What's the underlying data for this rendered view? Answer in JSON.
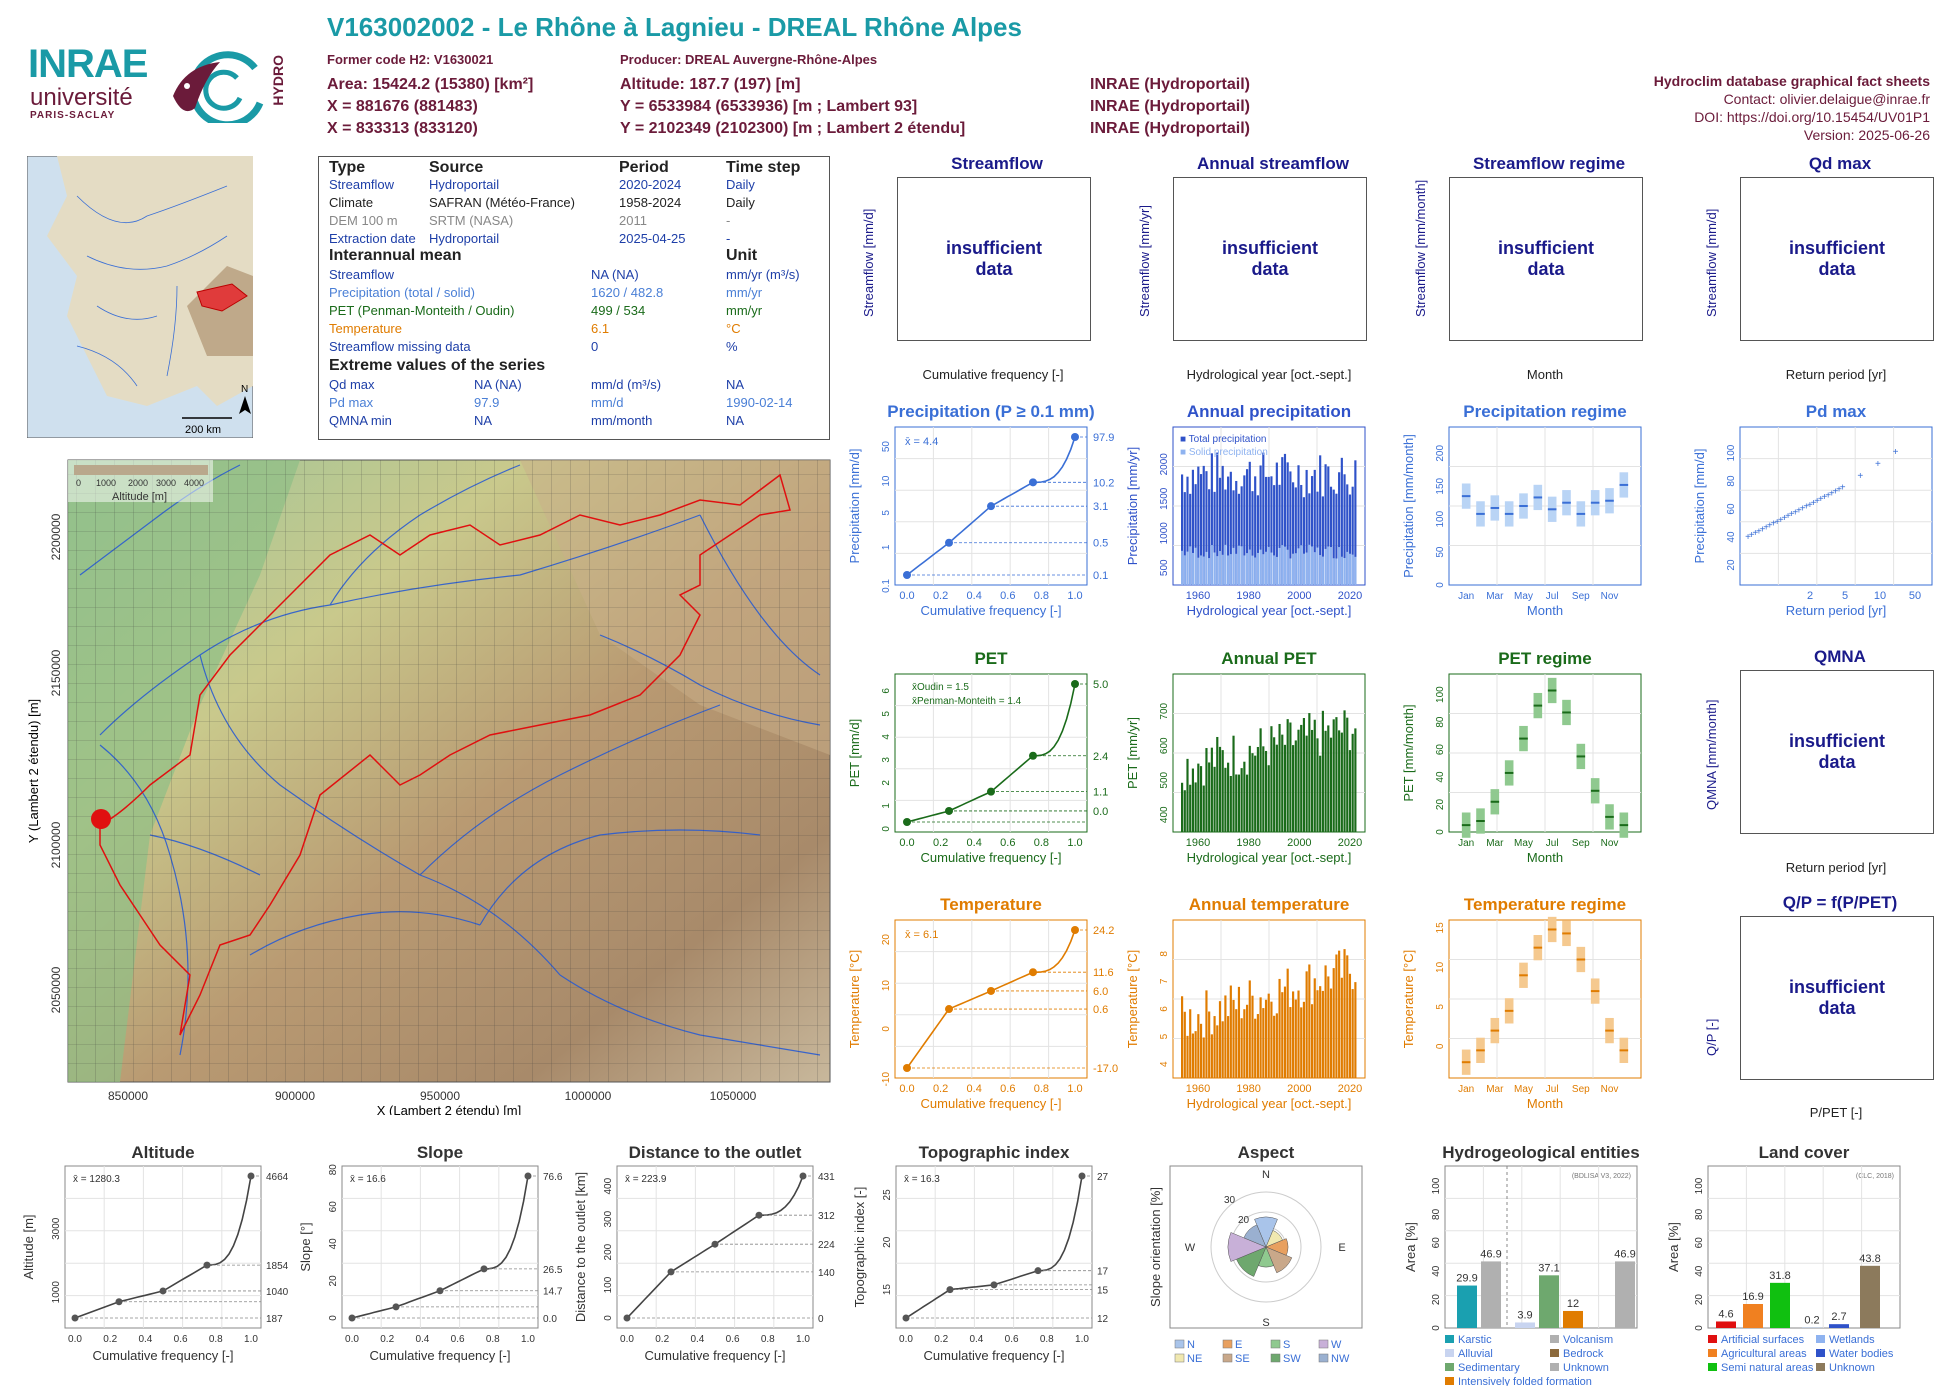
{
  "header": {
    "title": "V163002002 - Le Rhône à Lagnieu - DREAL Rhône Alpes",
    "former_code": "Former code H2: V1630021",
    "producer": "Producer: DREAL Auvergne-Rhône-Alpes",
    "area": "Area: 15424.2 (15380) [km²]",
    "x": "X = 881676 (881483)",
    "x2": "X = 833313 (833120)",
    "altitude": "Altitude: 187.7 (197) [m]",
    "y": "Y = 6533984 (6533936) [m ; Lambert 93]",
    "y2": "Y = 2102349 (2102300) [m ; Lambert 2 étendu]",
    "src1": "INRAE (Hydroportail)",
    "src2": "INRAE (Hydroportail)",
    "src3": "INRAE (Hydroportail)",
    "fact_title": "Hydroclim database graphical fact sheets",
    "contact": "Contact: olivier.delaigue@inrae.fr",
    "doi": "DOI: https://doi.org/10.15454/UV01P1",
    "version": "Version: 2025-06-26"
  },
  "logos": {
    "inrae": "INRAE",
    "univ": "université",
    "ps": "PARIS-SACLAY",
    "hydro": "HYDRO"
  },
  "info": {
    "h_type": "Type",
    "h_source": "Source",
    "h_period": "Period",
    "h_step": "Time step",
    "rows": [
      {
        "a": "Streamflow",
        "b": "Hydroportail",
        "c": "2020-2024",
        "d": "Daily",
        "cls": "blue"
      },
      {
        "a": "Climate",
        "b": "SAFRAN (Météo-France)",
        "c": "1958-2024",
        "d": "Daily",
        "cls": ""
      },
      {
        "a": "DEM 100 m",
        "b": "SRTM (NASA)",
        "c": "2011",
        "d": "-",
        "cls": "grey"
      },
      {
        "a": "Extraction date",
        "b": "Hydroportail",
        "c": "2025-04-25",
        "d": "-",
        "cls": "blue"
      }
    ],
    "interannual": "Interannual mean",
    "unit": "Unit",
    "mean_rows": [
      {
        "a": "Streamflow",
        "b": "NA (NA)",
        "c": "mm/yr (m³/s)",
        "cls": "blue"
      },
      {
        "a": "Precipitation (total / solid)",
        "b": "1620 / 482.8",
        "c": "mm/yr",
        "cls": "lblue"
      },
      {
        "a": "PET (Penman-Monteith / Oudin)",
        "b": "499 / 534",
        "c": "mm/yr",
        "cls": "green"
      },
      {
        "a": "Temperature",
        "b": "6.1",
        "c": "°C",
        "cls": "orange"
      },
      {
        "a": "Streamflow missing data",
        "b": "0",
        "c": "%",
        "cls": "blue"
      }
    ],
    "extreme": "Extreme values of the series",
    "ext_rows": [
      {
        "a": "Qd max",
        "b": "NA (NA)",
        "c": "mm/d (m³/s)",
        "d": "NA",
        "cls": "blue"
      },
      {
        "a": "Pd max",
        "b": "97.9",
        "c": "mm/d",
        "d": "1990-02-14",
        "cls": "lblue"
      },
      {
        "a": "QMNA min",
        "b": "NA",
        "c": "mm/month",
        "d": "NA",
        "cls": "blue"
      }
    ]
  },
  "locmap": {
    "scale": "200 km",
    "north": "N"
  },
  "bigmap": {
    "legend_title": "Altitude [m]",
    "legend_ticks": [
      "0",
      "1000",
      "2000",
      "3000",
      "4000"
    ],
    "xlabel": "X (Lambert 2 étendu) [m]",
    "ylabel": "Y (Lambert 2 étendu) [m]",
    "xticks": [
      "850000",
      "900000",
      "950000",
      "1000000",
      "1050000"
    ],
    "yticks": [
      "2200000",
      "2150000",
      "2100000",
      "2050000"
    ]
  },
  "panels": {
    "insufficient": "insufficient data",
    "streamflow": {
      "title": "Streamflow",
      "xlabel": "Cumulative frequency [-]",
      "ylabel": "Streamflow [mm/d]"
    },
    "annual_streamflow": {
      "title": "Annual streamflow",
      "xlabel": "Hydrological year [oct.-sept.]",
      "ylabel": "Streamflow [mm/yr]"
    },
    "streamflow_regime": {
      "title": "Streamflow regime",
      "xlabel": "Month",
      "ylabel": "Streamflow [mm/month]"
    },
    "qd_max": {
      "title": "Qd max",
      "xlabel": "Return period [yr]",
      "ylabel": "Streamflow [mm/d]"
    },
    "qmna": {
      "title": "QMNA",
      "xlabel": "Return period [yr]",
      "ylabel": "QMNA [mm/month]"
    },
    "qp": {
      "title": "Q/P = f(P/PET)",
      "xlabel": "P/PET [-]",
      "ylabel": "Q/P [-]"
    }
  },
  "chart_data": [
    {
      "id": "precip_cdf",
      "type": "line",
      "title": "Precipitation (P ≥ 0.1 mm)",
      "xlabel": "Cumulative frequency [-]",
      "ylabel": "Precipitation [mm/d]",
      "mean_label": "x̄ = 4.4",
      "x": [
        0,
        0.25,
        0.5,
        0.75,
        1
      ],
      "y": [
        0.1,
        0.5,
        3.1,
        10.2,
        97.9
      ],
      "right_labels": [
        "97.9",
        "10.2",
        "3.1",
        "0.5",
        "0.1"
      ],
      "yticks": [
        "0.1",
        "1",
        "5",
        "10",
        "50"
      ],
      "xticks": [
        "0.0",
        "0.2",
        "0.4",
        "0.6",
        "0.8",
        "1.0"
      ],
      "color": "#3a6fd6"
    },
    {
      "id": "annual_precip",
      "type": "bar",
      "title": "Annual precipitation",
      "xlabel": "Hydrological year [oct.-sept.]",
      "ylabel": "Precipitation [mm/yr]",
      "legend": [
        "Total precipitation",
        "Solid precipitation"
      ],
      "xticks": [
        "1960",
        "1980",
        "2000",
        "2020"
      ],
      "yticks": [
        "500",
        "1000",
        "1500",
        "2000"
      ],
      "ylim": [
        0,
        2200
      ]
    },
    {
      "id": "precip_regime",
      "type": "bar",
      "title": "Precipitation regime",
      "xlabel": "Month",
      "ylabel": "Precipitation [mm/month]",
      "months": [
        "Jan",
        "Mar",
        "May",
        "Jul",
        "Sep",
        "Nov"
      ],
      "values": [
        135,
        108,
        117,
        108,
        120,
        133,
        115,
        125,
        108,
        125,
        128,
        152
      ],
      "yticks": [
        "0",
        "50",
        "100",
        "150",
        "200"
      ],
      "ylim": [
        0,
        240
      ]
    },
    {
      "id": "pd_max",
      "type": "scatter",
      "title": "Pd max",
      "xlabel": "Return period [yr]",
      "ylabel": "Precipitation [mm/d]",
      "xticks": [
        "2",
        "5",
        "10",
        "50"
      ],
      "yticks": [
        "20",
        "40",
        "60",
        "80",
        "100"
      ]
    },
    {
      "id": "pet_cdf",
      "type": "line",
      "title": "PET",
      "xlabel": "Cumulative frequency [-]",
      "ylabel": "PET [mm/d]",
      "legend": [
        "x̄Oudin = 1.5",
        "x̄Penman-Monteith = 1.4"
      ],
      "x": [
        0,
        0.25,
        0.5,
        0.75,
        1
      ],
      "y": [
        0,
        0.4,
        1.1,
        2.4,
        5.0
      ],
      "right_labels": [
        "5.0",
        "2.4",
        "1.1",
        "0.0"
      ],
      "yticks": [
        "0",
        "1",
        "2",
        "3",
        "4",
        "5",
        "6"
      ],
      "xticks": [
        "0.0",
        "0.2",
        "0.4",
        "0.6",
        "0.8",
        "1.0"
      ],
      "color": "#1a6b1a"
    },
    {
      "id": "annual_pet",
      "type": "bar",
      "title": "Annual PET",
      "xlabel": "Hydrological year [oct.-sept.]",
      "ylabel": "PET [mm/yr]",
      "xticks": [
        "1960",
        "1980",
        "2000",
        "2020"
      ],
      "yticks": [
        "400",
        "500",
        "600",
        "700"
      ],
      "ylim": [
        360,
        720
      ]
    },
    {
      "id": "pet_regime",
      "type": "bar",
      "title": "PET regime",
      "xlabel": "Month",
      "ylabel": "PET [mm/month]",
      "months": [
        "Jan",
        "Mar",
        "May",
        "Jul",
        "Sep",
        "Nov"
      ],
      "values": [
        5,
        8,
        22,
        43,
        68,
        92,
        103,
        87,
        55,
        30,
        11,
        5
      ],
      "yticks": [
        "0",
        "20",
        "40",
        "60",
        "80",
        "100"
      ],
      "ylim": [
        0,
        115
      ]
    },
    {
      "id": "temp_cdf",
      "type": "line",
      "title": "Temperature",
      "xlabel": "Cumulative frequency [-]",
      "ylabel": "Temperature [°C]",
      "mean_label": "x̄ = 6.1",
      "x": [
        0,
        0.25,
        0.5,
        0.75,
        1
      ],
      "y": [
        -17,
        0.6,
        6.0,
        11.6,
        24.2
      ],
      "right_labels": [
        "24.2",
        "11.6",
        "6.0",
        "0.6",
        "-17.0"
      ],
      "yticks": [
        "-10",
        "0",
        "10",
        "20"
      ],
      "xticks": [
        "0.0",
        "0.2",
        "0.4",
        "0.6",
        "0.8",
        "1.0"
      ],
      "color": "#e07c00"
    },
    {
      "id": "annual_temp",
      "type": "bar",
      "title": "Annual temperature",
      "xlabel": "Hydrological year [oct.-sept.]",
      "ylabel": "Temperature [°C]",
      "xticks": [
        "1960",
        "1980",
        "2000",
        "2020"
      ],
      "yticks": [
        "4",
        "5",
        "6",
        "7",
        "8"
      ],
      "ylim": [
        4,
        8.5
      ]
    },
    {
      "id": "temp_regime",
      "type": "bar",
      "title": "Temperature regime",
      "xlabel": "Month",
      "ylabel": "Temperature [°C]",
      "months": [
        "Jan",
        "Mar",
        "May",
        "Jul",
        "Sep",
        "Nov"
      ],
      "values": [
        -2,
        -0.5,
        2,
        4.5,
        9,
        12.5,
        14.8,
        14.3,
        11,
        7,
        2,
        -0.5
      ],
      "yticks": [
        "0",
        "5",
        "10",
        "15"
      ],
      "ylim": [
        -4,
        16
      ]
    },
    {
      "id": "altitude",
      "type": "line",
      "title": "Altitude",
      "xlabel": "Cumulative frequency [-]",
      "ylabel": "Altitude [m]",
      "mean_label": "x̄ = 1280.3",
      "x": [
        0,
        0.25,
        0.5,
        0.75,
        1
      ],
      "y": [
        187,
        700,
        1040,
        1854,
        4664
      ],
      "right_labels": [
        "4664",
        "1854",
        "1040",
        "187"
      ],
      "yticks": [
        "1000",
        "3000"
      ],
      "xticks": [
        "0.0",
        "0.2",
        "0.4",
        "0.6",
        "0.8",
        "1.0"
      ]
    },
    {
      "id": "slope",
      "type": "line",
      "title": "Slope",
      "xlabel": "Cumulative frequency [-]",
      "ylabel": "Slope [°]",
      "mean_label": "x̄ = 16.6",
      "x": [
        0,
        0.25,
        0.5,
        0.75,
        1
      ],
      "y": [
        0,
        6,
        14.7,
        26.5,
        76.6
      ],
      "right_labels": [
        "76.6",
        "26.5",
        "14.7",
        "0.0"
      ],
      "yticks": [
        "0",
        "20",
        "40",
        "60",
        "80"
      ],
      "xticks": [
        "0.0",
        "0.2",
        "0.4",
        "0.6",
        "0.8",
        "1.0"
      ]
    },
    {
      "id": "distance",
      "type": "line",
      "title": "Distance to the outlet",
      "xlabel": "Cumulative frequency [-]",
      "ylabel": "Distance to the outlet [km]",
      "mean_label": "x̄ = 223.9",
      "x": [
        0,
        0.25,
        0.5,
        0.75,
        1
      ],
      "y": [
        0,
        140,
        224,
        312,
        431
      ],
      "right_labels": [
        "431",
        "312",
        "224",
        "140",
        "0"
      ],
      "yticks": [
        "0",
        "100",
        "200",
        "300",
        "400"
      ],
      "xticks": [
        "0.0",
        "0.2",
        "0.4",
        "0.6",
        "0.8",
        "1.0"
      ]
    },
    {
      "id": "topo",
      "type": "line",
      "title": "Topographic index",
      "xlabel": "Cumulative frequency [-]",
      "ylabel": "Topographic index [-]",
      "mean_label": "x̄ = 16.3",
      "x": [
        0,
        0.25,
        0.5,
        0.75,
        1
      ],
      "y": [
        12,
        15,
        15.5,
        17,
        27
      ],
      "right_labels": [
        "27",
        "17",
        "15",
        "12"
      ],
      "yticks": [
        "15",
        "20",
        "25"
      ],
      "xticks": [
        "0.0",
        "0.2",
        "0.4",
        "0.6",
        "0.8",
        "1.0"
      ]
    },
    {
      "id": "aspect",
      "type": "pie",
      "title": "Aspect",
      "ylabel": "Slope orientation [%]",
      "labels": [
        "N",
        "NE",
        "E",
        "SE",
        "S",
        "SW",
        "W",
        "NW"
      ],
      "rings": [
        "20",
        "30"
      ],
      "dirs": [
        "N",
        "E",
        "S",
        "W"
      ]
    },
    {
      "id": "hydrogeo",
      "type": "bar",
      "title": "Hydrogeological entities",
      "ylabel": "Area [%]",
      "note": "(BDLISA V3, 2022)",
      "categories": [
        "Karstic",
        "Alluvial",
        "Sedimentary",
        "Intensively folded formation",
        "Volcanism",
        "Bedrock",
        "Unknown"
      ],
      "values": [
        29.9,
        46.9,
        3.9,
        37.1,
        12,
        46.9
      ],
      "labels": [
        "29.9",
        "46.9",
        "3.9",
        "37.1",
        "12",
        "46.9"
      ],
      "yticks": [
        "0",
        "20",
        "40",
        "60",
        "80",
        "100"
      ]
    },
    {
      "id": "landcover",
      "type": "bar",
      "title": "Land cover",
      "ylabel": "Area [%]",
      "note": "(CLC, 2018)",
      "categories": [
        "Artificial surfaces",
        "Agricultural areas",
        "Semi natural areas",
        "Wetlands",
        "Water bodies",
        "Unknown"
      ],
      "values": [
        4.6,
        16.9,
        31.8,
        0.2,
        2.7,
        43.8
      ],
      "labels": [
        "4.6",
        "16.9",
        "31.8",
        "0.2",
        "2.7",
        "43.8"
      ],
      "yticks": [
        "0",
        "20",
        "40",
        "60",
        "80",
        "100"
      ]
    }
  ]
}
